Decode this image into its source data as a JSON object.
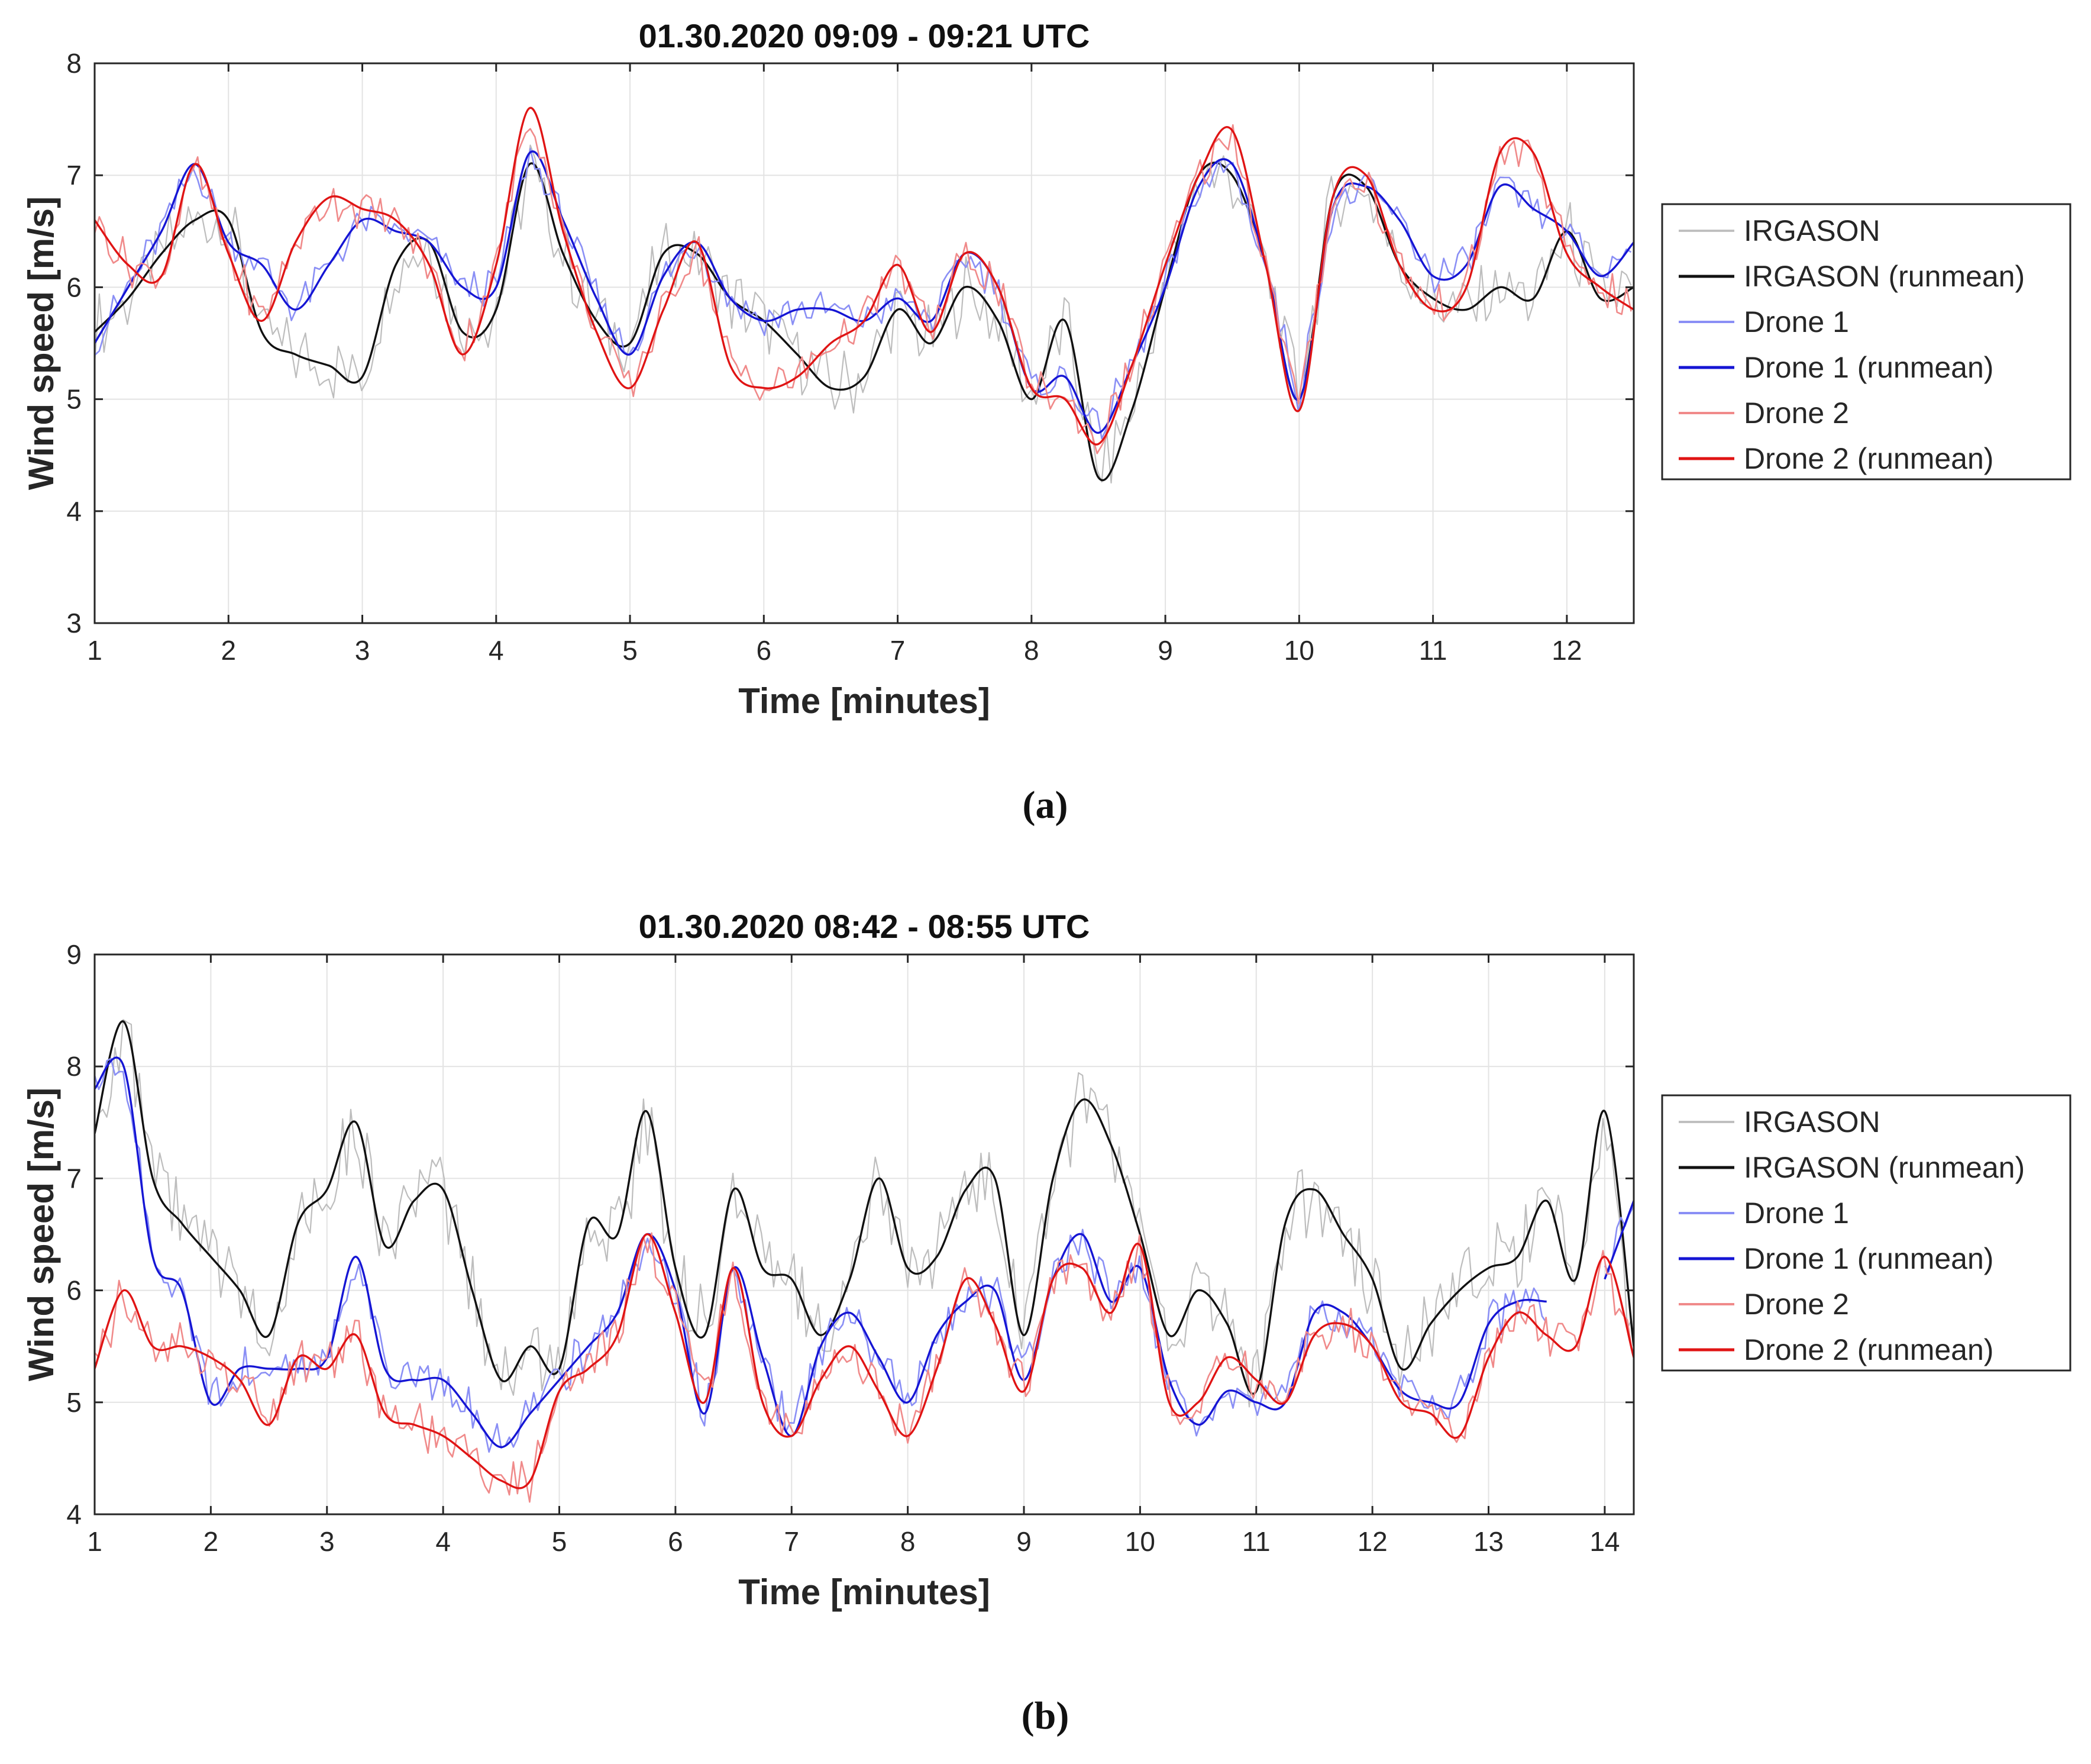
{
  "chart_data": [
    {
      "type": "line",
      "panel_label": "(a)",
      "title": "01.30.2020 09:09 - 09:21 UTC",
      "xlabel": "Time [minutes]",
      "ylabel": "Wind speed [m/s]",
      "xlim": [
        1,
        12.5
      ],
      "ylim": [
        3,
        8
      ],
      "xticks": [
        1,
        2,
        3,
        4,
        5,
        6,
        7,
        8,
        9,
        10,
        11,
        12
      ],
      "yticks": [
        3,
        4,
        5,
        6,
        7,
        8
      ],
      "grid": true,
      "legend_position": "outside-right",
      "legend": [
        "IRGASON",
        "IRGASON (runmean)",
        "Drone 1",
        "Drone 1 (runmean)",
        "Drone 2",
        "Drone 2 (runmean)"
      ],
      "x": [
        1.0,
        1.25,
        1.5,
        1.75,
        2.0,
        2.25,
        2.5,
        2.75,
        3.0,
        3.25,
        3.5,
        3.75,
        4.0,
        4.25,
        4.5,
        4.75,
        5.0,
        5.25,
        5.5,
        5.75,
        6.0,
        6.25,
        6.5,
        6.75,
        7.0,
        7.25,
        7.5,
        7.75,
        8.0,
        8.25,
        8.5,
        8.75,
        9.0,
        9.25,
        9.5,
        9.75,
        10.0,
        10.25,
        10.5,
        10.75,
        11.0,
        11.25,
        11.5,
        11.75,
        12.0,
        12.25,
        12.5
      ],
      "series": [
        {
          "name": "IRGASON",
          "color": "#bdbdbd",
          "width": 2.2,
          "jitter": 0.35,
          "values": [
            5.6,
            5.9,
            6.3,
            6.6,
            6.6,
            5.6,
            5.4,
            5.3,
            5.2,
            6.2,
            6.4,
            5.6,
            5.8,
            7.1,
            6.3,
            5.7,
            5.5,
            6.3,
            6.3,
            5.9,
            5.7,
            5.4,
            5.1,
            5.2,
            5.8,
            5.5,
            6.0,
            5.7,
            5.0,
            5.7,
            4.3,
            4.9,
            6.0,
            7.0,
            7.0,
            6.2,
            5.0,
            6.8,
            6.9,
            6.2,
            5.9,
            5.8,
            6.0,
            5.9,
            6.5,
            5.9,
            6.0
          ]
        },
        {
          "name": "IRGASON (runmean)",
          "color": "#111111",
          "width": 3.4,
          "jitter": 0,
          "values": [
            5.6,
            5.9,
            6.3,
            6.6,
            6.6,
            5.6,
            5.4,
            5.3,
            5.2,
            6.2,
            6.4,
            5.6,
            5.8,
            7.1,
            6.3,
            5.7,
            5.5,
            6.3,
            6.3,
            5.9,
            5.7,
            5.4,
            5.1,
            5.2,
            5.8,
            5.5,
            6.0,
            5.7,
            5.0,
            5.7,
            4.3,
            4.9,
            6.0,
            7.0,
            7.0,
            6.2,
            5.0,
            6.8,
            6.9,
            6.2,
            5.9,
            5.8,
            6.0,
            5.9,
            6.5,
            5.9,
            6.0
          ]
        },
        {
          "name": "Drone 1",
          "color": "#8a8ff5",
          "width": 2.6,
          "jitter": 0.18,
          "values": [
            5.5,
            6.0,
            6.5,
            7.1,
            6.4,
            6.2,
            5.8,
            6.2,
            6.6,
            6.5,
            6.4,
            6.0,
            6.0,
            7.2,
            6.6,
            5.9,
            5.4,
            6.1,
            6.4,
            5.9,
            5.7,
            5.8,
            5.8,
            5.7,
            5.9,
            5.7,
            6.3,
            6.0,
            5.1,
            5.2,
            4.7,
            5.3,
            6.0,
            6.9,
            7.1,
            6.2,
            5.0,
            6.7,
            6.9,
            6.6,
            6.1,
            6.2,
            6.9,
            6.7,
            6.5,
            6.1,
            6.4
          ]
        },
        {
          "name": "Drone 1 (runmean)",
          "color": "#1515d4",
          "width": 3.4,
          "jitter": 0,
          "values": [
            5.5,
            6.0,
            6.5,
            7.1,
            6.4,
            6.2,
            5.8,
            6.2,
            6.6,
            6.5,
            6.4,
            6.0,
            6.0,
            7.2,
            6.6,
            5.9,
            5.4,
            6.1,
            6.4,
            5.9,
            5.7,
            5.8,
            5.8,
            5.7,
            5.9,
            5.7,
            6.3,
            6.0,
            5.1,
            5.2,
            4.7,
            5.3,
            6.0,
            6.9,
            7.1,
            6.2,
            5.0,
            6.7,
            6.9,
            6.6,
            6.1,
            6.2,
            6.9,
            6.7,
            6.5,
            6.1,
            6.4
          ]
        },
        {
          "name": "Drone 2",
          "color": "#f08a8a",
          "width": 2.6,
          "jitter": 0.2,
          "values": [
            6.6,
            6.2,
            6.1,
            7.1,
            6.3,
            5.7,
            6.4,
            6.8,
            6.7,
            6.6,
            6.2,
            5.4,
            6.2,
            7.6,
            6.5,
            5.6,
            5.1,
            5.8,
            6.4,
            5.3,
            5.1,
            5.2,
            5.5,
            5.7,
            6.2,
            5.6,
            6.3,
            6.0,
            5.1,
            5.0,
            4.6,
            5.3,
            6.2,
            7.0,
            7.4,
            6.2,
            4.9,
            6.8,
            7.0,
            6.2,
            5.8,
            6.0,
            7.2,
            7.2,
            6.3,
            6.0,
            5.8
          ]
        },
        {
          "name": "Drone 2 (runmean)",
          "color": "#e01414",
          "width": 3.4,
          "jitter": 0,
          "values": [
            6.6,
            6.2,
            6.1,
            7.1,
            6.3,
            5.7,
            6.4,
            6.8,
            6.7,
            6.6,
            6.2,
            5.4,
            6.2,
            7.6,
            6.5,
            5.6,
            5.1,
            5.8,
            6.4,
            5.3,
            5.1,
            5.2,
            5.5,
            5.7,
            6.2,
            5.6,
            6.3,
            6.0,
            5.1,
            5.0,
            4.6,
            5.3,
            6.2,
            7.0,
            7.4,
            6.2,
            4.9,
            6.8,
            7.0,
            6.2,
            5.8,
            6.0,
            7.2,
            7.2,
            6.3,
            6.0,
            5.8
          ]
        }
      ]
    },
    {
      "type": "line",
      "panel_label": "(b)",
      "title": "01.30.2020 08:42 - 08:55 UTC",
      "xlabel": "Time [minutes]",
      "ylabel": "Wind speed [m/s]",
      "xlim": [
        1,
        14.25
      ],
      "ylim": [
        4,
        9
      ],
      "xticks": [
        1,
        2,
        3,
        4,
        5,
        6,
        7,
        8,
        9,
        10,
        11,
        12,
        13,
        14
      ],
      "yticks": [
        4,
        5,
        6,
        7,
        8,
        9
      ],
      "grid": true,
      "legend_position": "outside-right",
      "legend": [
        "IRGASON",
        "IRGASON (runmean)",
        "Drone 1",
        "Drone 1 (runmean)",
        "Drone 2",
        "Drone 2 (runmean)"
      ],
      "x": [
        1.0,
        1.25,
        1.5,
        1.75,
        2.0,
        2.25,
        2.5,
        2.75,
        3.0,
        3.25,
        3.5,
        3.75,
        4.0,
        4.25,
        4.5,
        4.75,
        5.0,
        5.25,
        5.5,
        5.75,
        6.0,
        6.25,
        6.5,
        6.75,
        7.0,
        7.25,
        7.5,
        7.75,
        8.0,
        8.25,
        8.5,
        8.75,
        9.0,
        9.25,
        9.5,
        9.75,
        10.0,
        10.25,
        10.5,
        10.75,
        11.0,
        11.25,
        11.5,
        11.75,
        12.0,
        12.25,
        12.5,
        12.75,
        13.0,
        13.25,
        13.5,
        13.75,
        14.0,
        14.25
      ],
      "series": [
        {
          "name": "IRGASON",
          "color": "#bdbdbd",
          "width": 2.2,
          "jitter": 0.4,
          "values": [
            7.4,
            8.4,
            7.0,
            6.6,
            6.3,
            6.0,
            5.6,
            6.6,
            6.9,
            7.5,
            6.4,
            6.8,
            6.9,
            6.0,
            5.2,
            5.5,
            5.3,
            6.6,
            6.5,
            7.6,
            6.2,
            5.6,
            6.9,
            6.2,
            6.1,
            5.6,
            6.1,
            7.0,
            6.2,
            6.3,
            6.9,
            7.0,
            5.6,
            7.0,
            7.7,
            7.3,
            6.5,
            5.6,
            6.0,
            5.7,
            5.1,
            6.6,
            6.9,
            6.5,
            6.1,
            5.3,
            5.7,
            6.0,
            6.2,
            6.3,
            6.8,
            6.1,
            7.6,
            5.5
          ]
        },
        {
          "name": "IRGASON (runmean)",
          "color": "#111111",
          "width": 3.4,
          "jitter": 0,
          "values": [
            7.4,
            8.4,
            7.0,
            6.6,
            6.3,
            6.0,
            5.6,
            6.6,
            6.9,
            7.5,
            6.4,
            6.8,
            6.9,
            6.0,
            5.2,
            5.5,
            5.3,
            6.6,
            6.5,
            7.6,
            6.2,
            5.6,
            6.9,
            6.2,
            6.1,
            5.6,
            6.1,
            7.0,
            6.2,
            6.3,
            6.9,
            7.0,
            5.6,
            7.0,
            7.7,
            7.3,
            6.5,
            5.6,
            6.0,
            5.7,
            5.1,
            6.6,
            6.9,
            6.5,
            6.1,
            5.3,
            5.7,
            6.0,
            6.2,
            6.3,
            6.8,
            6.1,
            7.6,
            5.5
          ]
        },
        {
          "name": "Drone 1",
          "color": "#8a8ff5",
          "width": 2.6,
          "jitter": 0.22,
          "values": [
            7.8,
            8.0,
            6.3,
            6.0,
            5.0,
            5.3,
            5.3,
            5.3,
            5.4,
            6.3,
            5.3,
            5.2,
            5.2,
            4.9,
            4.6,
            4.9,
            5.2,
            5.5,
            5.8,
            6.5,
            6.0,
            4.9,
            6.2,
            5.4,
            4.7,
            5.5,
            5.8,
            5.4,
            5.0,
            5.6,
            5.9,
            6.0,
            5.2,
            6.1,
            6.5,
            5.9,
            6.2,
            5.2,
            4.8,
            5.1,
            5.0,
            5.0,
            5.8,
            5.8,
            5.5,
            5.1,
            5.0,
            5.0,
            5.7,
            5.9,
            5.9,
            null,
            6.1,
            6.8
          ]
        },
        {
          "name": "Drone 1 (runmean)",
          "color": "#1515d4",
          "width": 3.4,
          "jitter": 0,
          "values": [
            7.8,
            8.0,
            6.3,
            6.0,
            5.0,
            5.3,
            5.3,
            5.3,
            5.4,
            6.3,
            5.3,
            5.2,
            5.2,
            4.9,
            4.6,
            4.9,
            5.2,
            5.5,
            5.8,
            6.5,
            6.0,
            4.9,
            6.2,
            5.4,
            4.7,
            5.5,
            5.8,
            5.4,
            5.0,
            5.6,
            5.9,
            6.0,
            5.2,
            6.1,
            6.5,
            5.9,
            6.2,
            5.2,
            4.8,
            5.1,
            5.0,
            5.0,
            5.8,
            5.8,
            5.5,
            5.1,
            5.0,
            5.0,
            5.7,
            5.9,
            5.9,
            null,
            6.1,
            6.8
          ]
        },
        {
          "name": "Drone 2",
          "color": "#f08a8a",
          "width": 2.6,
          "jitter": 0.22,
          "values": [
            5.3,
            6.0,
            5.5,
            5.5,
            5.4,
            5.2,
            4.8,
            5.4,
            5.3,
            5.6,
            4.9,
            4.8,
            4.7,
            4.5,
            4.3,
            4.3,
            5.1,
            5.3,
            5.6,
            6.5,
            5.8,
            5.0,
            6.2,
            5.0,
            4.7,
            5.2,
            5.5,
            5.1,
            4.7,
            5.3,
            6.1,
            5.7,
            5.1,
            6.1,
            6.2,
            5.8,
            6.4,
            5.0,
            5.0,
            5.4,
            5.2,
            5.0,
            5.6,
            5.7,
            5.5,
            5.0,
            4.9,
            4.7,
            5.4,
            5.8,
            5.6,
            5.5,
            6.3,
            5.4
          ]
        },
        {
          "name": "Drone 2 (runmean)",
          "color": "#e01414",
          "width": 3.4,
          "jitter": 0,
          "values": [
            5.3,
            6.0,
            5.5,
            5.5,
            5.4,
            5.2,
            4.8,
            5.4,
            5.3,
            5.6,
            4.9,
            4.8,
            4.7,
            4.5,
            4.3,
            4.3,
            5.1,
            5.3,
            5.6,
            6.5,
            5.8,
            5.0,
            6.2,
            5.0,
            4.7,
            5.2,
            5.5,
            5.1,
            4.7,
            5.3,
            6.1,
            5.7,
            5.1,
            6.1,
            6.2,
            5.8,
            6.4,
            5.0,
            5.0,
            5.4,
            5.2,
            5.0,
            5.6,
            5.7,
            5.5,
            5.0,
            4.9,
            4.7,
            5.4,
            5.8,
            5.6,
            5.5,
            6.3,
            5.4
          ]
        }
      ]
    }
  ]
}
